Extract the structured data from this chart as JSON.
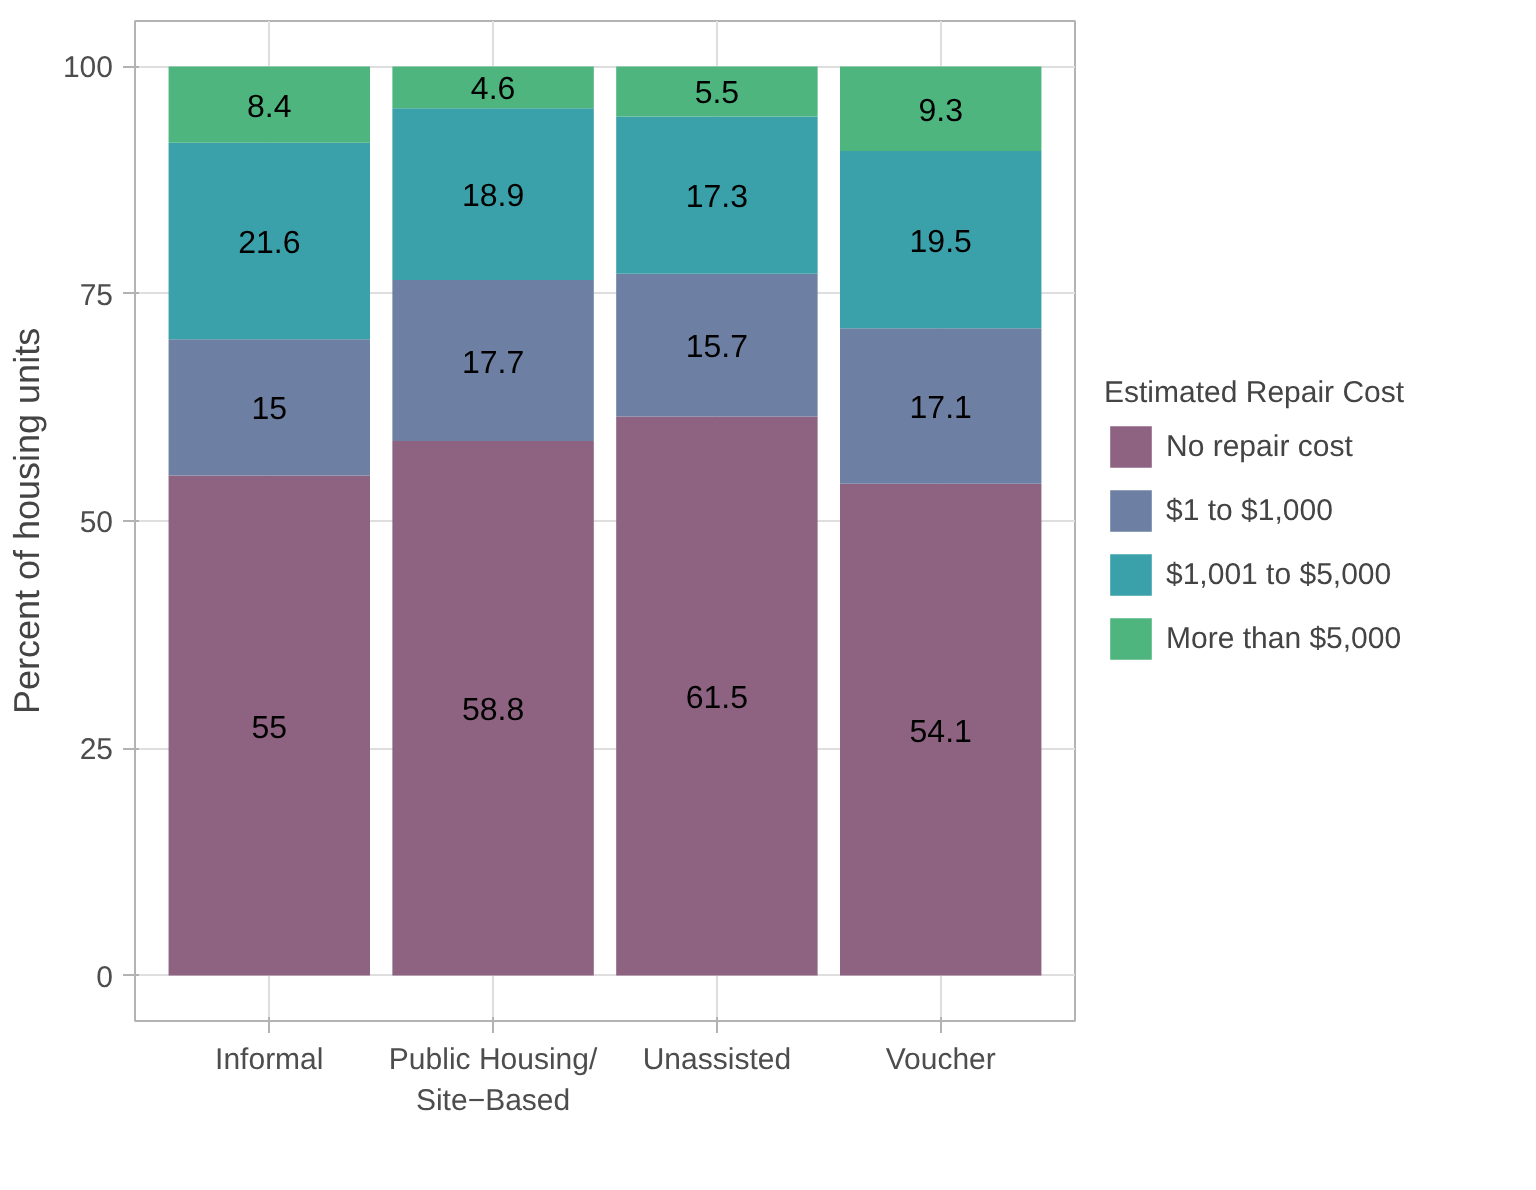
{
  "chart_data": {
    "type": "bar",
    "stacked": true,
    "ylabel": "Percent of housing units",
    "legend_title": "Estimated Repair Cost",
    "categories": [
      "Informal",
      "Public Housing/\nSite−Based",
      "Unassisted",
      "Voucher"
    ],
    "series": [
      {
        "name": "No repair cost",
        "color": "#8d6381",
        "values": [
          55,
          58.8,
          61.5,
          54.1
        ]
      },
      {
        "name": "$1 to $1,000",
        "color": "#6d80a3",
        "values": [
          15,
          17.7,
          15.7,
          17.1
        ]
      },
      {
        "name": "$1,001 to $5,000",
        "color": "#3aa0a9",
        "values": [
          21.6,
          18.9,
          17.3,
          19.5
        ]
      },
      {
        "name": "More than $5,000",
        "color": "#4fb57f",
        "values": [
          8.4,
          4.6,
          5.5,
          9.3
        ]
      }
    ],
    "ylim": [
      -5,
      105
    ],
    "yticks": [
      0,
      25,
      50,
      75,
      100
    ],
    "grid": true,
    "legend": "right",
    "data_labels": true
  }
}
